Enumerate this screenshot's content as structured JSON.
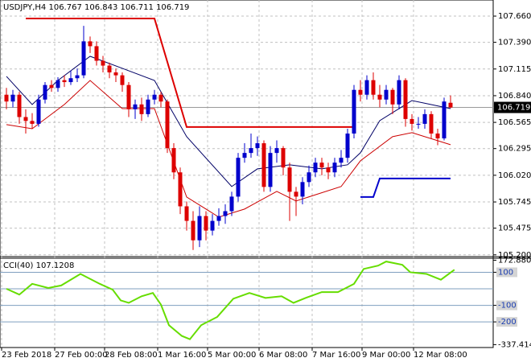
{
  "chart_data": [
    {
      "type": "candlestick",
      "title": "USDJPY,H4  106.767 106.843 106.711 106.719",
      "open": [
        106.85,
        106.78,
        106.85,
        106.62,
        106.58,
        106.55,
        106.8,
        106.95,
        106.92,
        107.0,
        106.98,
        107.02,
        107.05,
        107.4,
        107.35,
        107.2,
        107.15,
        107.08,
        107.05,
        106.95,
        106.7,
        106.75,
        106.65,
        106.8,
        106.85,
        106.78,
        106.3,
        106.05,
        105.7,
        105.55,
        105.35,
        105.6,
        105.45,
        105.55,
        105.6,
        105.65,
        105.8,
        106.2,
        106.25,
        106.3,
        106.35,
        105.9,
        106.25,
        106.3,
        106.1,
        105.85,
        105.8,
        105.95,
        106.05,
        106.15,
        106.1,
        106.05,
        106.15,
        106.2,
        106.45,
        106.9,
        106.85,
        107.0,
        106.85,
        106.8,
        106.9,
        106.75,
        107.0,
        106.6,
        106.55,
        106.55,
        106.65,
        106.45,
        106.4,
        106.767
      ],
      "high": [
        106.92,
        106.9,
        106.88,
        106.7,
        106.66,
        106.85,
        106.98,
        107.0,
        107.03,
        107.05,
        107.1,
        107.12,
        107.56,
        107.45,
        107.4,
        107.25,
        107.18,
        107.12,
        107.08,
        106.98,
        106.8,
        106.82,
        106.85,
        106.9,
        106.88,
        106.8,
        106.35,
        106.1,
        105.75,
        105.65,
        105.7,
        105.65,
        105.62,
        105.68,
        105.72,
        105.85,
        106.25,
        106.35,
        106.45,
        106.42,
        106.38,
        106.32,
        106.38,
        106.32,
        106.15,
        105.9,
        106.0,
        106.12,
        106.2,
        106.2,
        106.15,
        106.2,
        106.28,
        106.5,
        106.95,
        107.0,
        107.05,
        107.08,
        106.95,
        106.95,
        106.92,
        107.05,
        107.02,
        106.65,
        106.62,
        106.7,
        106.68,
        106.5,
        106.82,
        106.843
      ],
      "low": [
        106.7,
        106.72,
        106.55,
        106.45,
        106.5,
        106.52,
        106.76,
        106.88,
        106.88,
        106.93,
        106.95,
        106.98,
        107.02,
        107.28,
        107.15,
        107.08,
        107.02,
        106.98,
        106.88,
        106.62,
        106.6,
        106.58,
        106.62,
        106.75,
        106.72,
        106.25,
        105.98,
        105.62,
        105.45,
        105.25,
        105.28,
        105.35,
        105.4,
        105.5,
        105.52,
        105.6,
        105.75,
        106.15,
        106.2,
        106.22,
        105.85,
        105.85,
        106.15,
        106.02,
        105.55,
        105.6,
        105.72,
        105.9,
        106.0,
        106.02,
        105.98,
        106.0,
        106.1,
        106.15,
        106.4,
        106.78,
        106.8,
        106.8,
        106.72,
        106.75,
        106.65,
        106.7,
        106.52,
        106.48,
        106.5,
        106.5,
        106.4,
        106.33,
        106.38,
        106.711
      ],
      "close": [
        106.78,
        106.85,
        106.62,
        106.58,
        106.55,
        106.8,
        106.95,
        106.92,
        107.0,
        106.98,
        107.02,
        107.05,
        107.4,
        107.35,
        107.2,
        107.15,
        107.08,
        107.05,
        106.95,
        106.7,
        106.75,
        106.65,
        106.8,
        106.85,
        106.78,
        106.3,
        106.05,
        105.7,
        105.55,
        105.35,
        105.6,
        105.45,
        105.55,
        105.6,
        105.65,
        105.8,
        106.2,
        106.25,
        106.3,
        106.35,
        105.9,
        106.25,
        106.3,
        106.1,
        105.85,
        105.8,
        105.95,
        106.05,
        106.15,
        106.1,
        106.05,
        106.15,
        106.2,
        106.45,
        106.9,
        106.85,
        107.0,
        106.85,
        106.8,
        106.9,
        106.75,
        107.0,
        106.6,
        106.55,
        106.55,
        106.65,
        106.45,
        106.4,
        106.78,
        106.719
      ],
      "up_color": "#0000cc",
      "down_color": "#dd0000",
      "lines": [
        {
          "color": "#000066",
          "x": [
            0,
            4,
            8,
            13,
            18,
            23,
            28,
            35,
            39,
            44,
            49,
            53,
            55,
            58,
            63,
            69
          ],
          "values": [
            107.039,
            106.749,
            106.997,
            107.246,
            107.122,
            106.997,
            106.418,
            105.904,
            106.086,
            106.128,
            106.086,
            106.128,
            106.252,
            106.583,
            106.79,
            106.707
          ]
        },
        {
          "color": "#cc0000",
          "x": [
            0,
            4,
            9,
            13,
            18,
            23,
            28,
            33,
            37,
            42,
            45,
            52,
            55,
            60,
            63,
            69
          ],
          "values": [
            106.542,
            106.5,
            106.749,
            106.997,
            106.707,
            106.707,
            105.796,
            105.589,
            105.672,
            105.854,
            105.755,
            105.904,
            106.169,
            106.418,
            106.459,
            106.335
          ]
        },
        {
          "color": "#dd0000",
          "width": 2,
          "x": [
            3,
            23,
            28,
            54
          ],
          "values": [
            107.635,
            107.635,
            106.517,
            106.517
          ]
        },
        {
          "color": "#0000cc",
          "width": 2,
          "x": [
            55,
            57,
            58,
            69
          ],
          "values": [
            105.796,
            105.796,
            105.987,
            105.987
          ]
        }
      ],
      "ylim": [
        105.19,
        107.826
      ],
      "yticks": [
        {
          "value": 107.66,
          "label": "107.660"
        },
        {
          "value": 107.39,
          "label": "107.390"
        },
        107.115,
        {
          "value": 106.84,
          "label": "106.840"
        },
        106.565,
        106.295,
        {
          "value": 106.02,
          "label": "106.020"
        },
        105.745,
        105.475,
        {
          "value": 105.2,
          "label": "105.200"
        }
      ],
      "current": 106.719,
      "xticks": [
        {
          "value": -0.75,
          "label": "23 Feb 2018"
        },
        {
          "value": 7.5,
          "label": "27 Feb 00:00"
        },
        {
          "value": 15.25,
          "label": "28 Feb 08:00"
        },
        {
          "value": 23.5,
          "label": "1 Mar 16:00"
        },
        {
          "value": 31.25,
          "label": "5 Mar 00:00"
        },
        {
          "value": 39.25,
          "label": "6 Mar 08:00"
        },
        {
          "value": 47.5,
          "label": "7 Mar 16:00"
        },
        {
          "value": 55.25,
          "label": "9 Mar 00:00"
        },
        {
          "value": 63.25,
          "label": "12 Mar 08:00"
        }
      ],
      "grid": true
    },
    {
      "type": "line",
      "title": "CCI(40) 107.1208",
      "color": "#66dd00",
      "x": [
        0,
        2,
        4,
        6.5,
        8.5,
        11.5,
        14.5,
        16.5,
        17.75,
        19,
        21,
        22.75,
        24,
        25.25,
        27.25,
        28.5,
        30.25,
        32.75,
        35.25,
        37.75,
        40.25,
        42.75,
        44.6,
        46.5,
        49,
        51.5,
        54,
        55.5,
        57.75,
        59,
        61.5,
        62.75,
        65.25,
        67.5,
        69.6
      ],
      "values": [
        0,
        -35,
        30,
        5,
        20,
        90,
        30,
        -5,
        -70,
        -85,
        -45,
        -25,
        -95,
        -220,
        -285,
        -305,
        -220,
        -170,
        -60,
        -25,
        -55,
        -45,
        -85,
        -55,
        -20,
        -20,
        30,
        120,
        140,
        165,
        145,
        100,
        90,
        55,
        115
      ],
      "ylim": [
        -355,
        180
      ],
      "yticks": [
        172.8802,
        100,
        -100,
        -200,
        -337.4143
      ],
      "levels": [
        100,
        0,
        -100,
        -200
      ]
    }
  ]
}
